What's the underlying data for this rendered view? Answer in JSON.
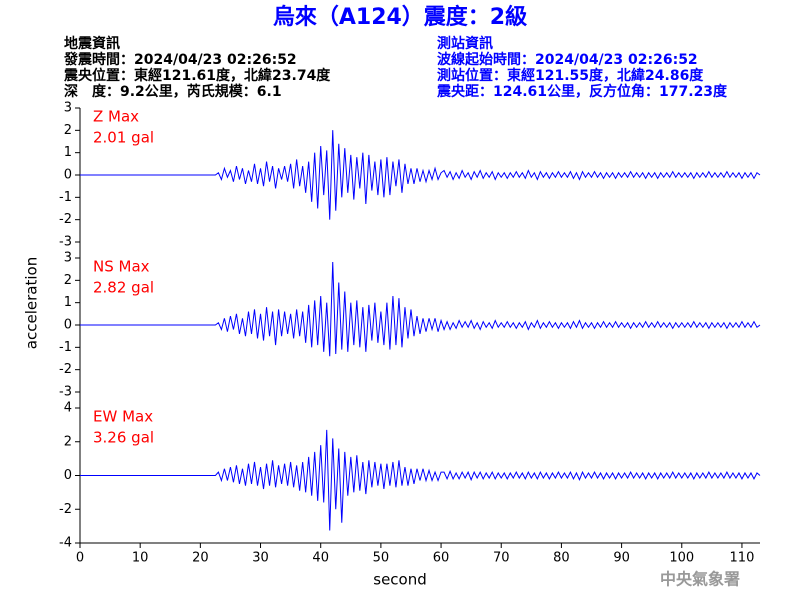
{
  "title": "烏來（A124）震度：2級",
  "event_info": {
    "heading": "地震資訊",
    "lines": [
      "發震時間：2024/04/23 02:26:52",
      "震央位置：東經121.61度，北緯23.74度",
      "深　度：9.2公里，芮氏規模：6.1"
    ]
  },
  "station_info": {
    "heading": "測站資訊",
    "lines": [
      "波線起始時間：2024/04/23 02:26:52",
      "測站位置：東經121.55度，北緯24.86度",
      "震央距：124.61公里，反方位角：177.23度"
    ]
  },
  "footer": "中央氣象署",
  "chart_data": {
    "type": "line",
    "xlabel": "second",
    "ylabel": "acceleration",
    "xlim": [
      0,
      113
    ],
    "xticks": [
      0,
      10,
      20,
      30,
      40,
      50,
      60,
      70,
      80,
      90,
      100,
      110
    ],
    "x": [
      0,
      22.5,
      23,
      23.5,
      24,
      24.5,
      25,
      25.5,
      26,
      26.5,
      27,
      27.5,
      28,
      28.5,
      29,
      29.5,
      30,
      30.5,
      31,
      31.5,
      32,
      32.5,
      33,
      33.5,
      34,
      34.5,
      35,
      35.5,
      36,
      36.5,
      37,
      37.5,
      38,
      38.5,
      39,
      39.5,
      40,
      40.5,
      41,
      41.5,
      42,
      42.5,
      43,
      43.5,
      44,
      44.5,
      45,
      45.5,
      46,
      46.5,
      47,
      47.5,
      48,
      48.5,
      49,
      49.5,
      50,
      50.5,
      51,
      51.5,
      52,
      52.5,
      53,
      53.5,
      54,
      54.5,
      55,
      55.5,
      56,
      56.5,
      57,
      57.5,
      58,
      58.5,
      59,
      59.5,
      60,
      60.5,
      61,
      61.5,
      62,
      62.5,
      63,
      63.5,
      64,
      64.5,
      65,
      65.5,
      66,
      66.5,
      67,
      67.5,
      68,
      68.5,
      69,
      69.5,
      70,
      70.5,
      71,
      71.5,
      72,
      72.5,
      73,
      73.5,
      74,
      74.5,
      75,
      75.5,
      76,
      76.5,
      77,
      77.5,
      78,
      78.5,
      79,
      79.5,
      80,
      80.5,
      81,
      81.5,
      82,
      82.5,
      83,
      83.5,
      84,
      84.5,
      85,
      85.5,
      86,
      86.5,
      87,
      87.5,
      88,
      88.5,
      89,
      89.5,
      90,
      90.5,
      91,
      91.5,
      92,
      92.5,
      93,
      93.5,
      94,
      94.5,
      95,
      95.5,
      96,
      96.5,
      97,
      97.5,
      98,
      98.5,
      99,
      99.5,
      100,
      100.5,
      101,
      101.5,
      102,
      102.5,
      103,
      103.5,
      104,
      104.5,
      105,
      105.5,
      106,
      106.5,
      107,
      107.5,
      108,
      108.5,
      109,
      109.5,
      110,
      110.5,
      111,
      111.5,
      112,
      112.5,
      113
    ],
    "series": [
      {
        "name": "Z Max",
        "max_text": "2.01 gal",
        "color": "#0000ff",
        "label_color": "#ff0000",
        "ylim": [
          -3,
          3
        ],
        "yticks": [
          -3,
          -2,
          -1,
          0,
          1,
          2,
          3
        ],
        "values": [
          0,
          0,
          0.1,
          -0.2,
          0.3,
          -0.1,
          0.2,
          -0.3,
          0.4,
          -0.2,
          0.3,
          -0.4,
          0.2,
          -0.3,
          0.5,
          -0.4,
          0.3,
          -0.5,
          0.6,
          -0.3,
          0.4,
          -0.6,
          0.3,
          -0.2,
          0.4,
          -0.3,
          0.5,
          -0.6,
          0.7,
          -0.5,
          0.4,
          -0.8,
          0.6,
          -1.2,
          1.0,
          -1.5,
          1.3,
          -0.9,
          1.1,
          -2.0,
          2.01,
          -1.6,
          1.4,
          -1.0,
          1.2,
          -0.8,
          0.9,
          -1.1,
          0.8,
          -0.6,
          1.0,
          -1.3,
          0.9,
          -0.7,
          0.6,
          -0.9,
          0.7,
          -1.0,
          0.8,
          -0.9,
          0.6,
          -0.5,
          0.7,
          -0.8,
          0.5,
          -0.4,
          0.3,
          -0.4,
          0.3,
          -0.3,
          0.2,
          -0.3,
          0.2,
          -0.2,
          0.3,
          -0.2,
          0.1,
          0.2,
          -0.1,
          0.15,
          -0.2,
          0.1,
          -0.15,
          0.2,
          -0.1,
          0.1,
          -0.2,
          0.15,
          -0.1,
          0.2,
          -0.15,
          0.1,
          -0.1,
          0.15,
          -0.2,
          0.1,
          -0.1,
          0.1,
          -0.15,
          0.1,
          -0.1,
          0.15,
          -0.1,
          0.1,
          -0.15,
          0.2,
          -0.1,
          0.1,
          -0.2,
          0.15,
          -0.1,
          0.1,
          -0.15,
          0.1,
          -0.1,
          0.15,
          -0.1,
          0.1,
          -0.1,
          0.15,
          -0.15,
          0.1,
          -0.2,
          0.15,
          -0.1,
          0.1,
          -0.1,
          0.15,
          -0.1,
          0.1,
          -0.15,
          0.1,
          -0.1,
          0.1,
          -0.15,
          0.1,
          -0.1,
          0.1,
          -0.1,
          0.15,
          -0.1,
          0.1,
          -0.1,
          0.1,
          -0.15,
          0.1,
          -0.1,
          0.1,
          -0.15,
          0.1,
          -0.1,
          0.1,
          -0.1,
          0.15,
          -0.1,
          0.1,
          -0.1,
          0.1,
          -0.1,
          0.1,
          -0.15,
          0.1,
          -0.1,
          0.1,
          -0.1,
          0.15,
          -0.1,
          0.1,
          -0.1,
          0.1,
          -0.1,
          0.15,
          -0.1,
          0.1,
          -0.1,
          0.1,
          -0.15,
          0.1,
          -0.1,
          0.1,
          -0.15,
          0.1,
          0
        ]
      },
      {
        "name": "NS Max",
        "max_text": "2.82 gal",
        "color": "#0000ff",
        "label_color": "#ff0000",
        "ylim": [
          -3,
          3
        ],
        "yticks": [
          -3,
          -2,
          -1,
          0,
          1,
          2,
          3
        ],
        "values": [
          0,
          0,
          0.1,
          -0.2,
          0.3,
          -0.3,
          0.4,
          -0.2,
          0.5,
          -0.4,
          0.3,
          -0.5,
          0.6,
          -0.4,
          0.7,
          -0.6,
          0.5,
          -0.7,
          0.8,
          -0.5,
          0.6,
          -0.9,
          0.7,
          -0.5,
          0.6,
          -0.4,
          0.5,
          -0.6,
          0.7,
          -0.5,
          0.6,
          -0.8,
          0.9,
          -1.0,
          1.1,
          -0.9,
          1.3,
          -1.2,
          1.0,
          -1.4,
          2.82,
          -1.3,
          1.9,
          -1.1,
          1.5,
          -1.2,
          1.0,
          -0.9,
          1.1,
          -1.0,
          0.8,
          -1.2,
          0.9,
          -0.7,
          1.0,
          -0.8,
          0.6,
          -0.9,
          1.0,
          -1.1,
          1.3,
          -0.9,
          1.2,
          -1.0,
          0.8,
          -0.6,
          0.7,
          -0.5,
          0.4,
          -0.4,
          0.3,
          -0.3,
          0.3,
          -0.2,
          0.3,
          -0.3,
          0.2,
          -0.2,
          0.15,
          -0.2,
          0.1,
          -0.15,
          0.2,
          -0.1,
          0.15,
          -0.1,
          0.2,
          -0.15,
          0.1,
          -0.2,
          0.15,
          -0.1,
          0.1,
          -0.15,
          0.2,
          -0.1,
          0.1,
          -0.1,
          0.15,
          -0.1,
          0.1,
          -0.15,
          0.1,
          -0.1,
          0.15,
          -0.2,
          0.1,
          -0.1,
          0.2,
          -0.15,
          0.1,
          -0.1,
          0.15,
          -0.1,
          0.1,
          -0.15,
          0.1,
          -0.1,
          0.1,
          -0.15,
          0.15,
          -0.1,
          0.2,
          -0.15,
          0.1,
          -0.1,
          0.1,
          -0.15,
          0.1,
          -0.1,
          0.15,
          -0.1,
          0.1,
          -0.1,
          0.15,
          -0.1,
          0.1,
          -0.1,
          0.1,
          -0.15,
          0.1,
          -0.1,
          0.1,
          -0.1,
          0.15,
          -0.1,
          0.1,
          -0.1,
          0.15,
          -0.1,
          0.1,
          -0.1,
          0.1,
          -0.15,
          0.1,
          -0.1,
          0.1,
          -0.1,
          0.1,
          -0.1,
          0.15,
          -0.1,
          0.1,
          -0.1,
          0.1,
          -0.15,
          0.1,
          -0.1,
          0.1,
          -0.1,
          0.1,
          -0.15,
          0.1,
          -0.1,
          0.1,
          -0.1,
          0.15,
          -0.1,
          0.1,
          -0.1,
          0.15,
          -0.1,
          0
        ]
      },
      {
        "name": "EW Max",
        "max_text": "3.26 gal",
        "color": "#0000ff",
        "label_color": "#ff0000",
        "ylim": [
          -4,
          4
        ],
        "yticks": [
          -4,
          -2,
          0,
          2,
          4
        ],
        "values": [
          0,
          0,
          0.2,
          -0.3,
          0.4,
          -0.3,
          0.5,
          -0.4,
          0.6,
          -0.5,
          0.4,
          -0.6,
          0.7,
          -0.5,
          0.8,
          -0.6,
          0.5,
          -0.8,
          0.7,
          -0.6,
          0.9,
          -0.7,
          0.6,
          -0.5,
          0.7,
          -0.6,
          0.8,
          -0.7,
          0.6,
          -0.9,
          0.8,
          -1.0,
          1.1,
          -1.2,
          1.4,
          -1.5,
          1.8,
          -1.6,
          2.7,
          -3.26,
          2.2,
          -2.0,
          1.6,
          -2.8,
          1.4,
          -1.2,
          1.1,
          -1.0,
          1.2,
          -0.9,
          0.8,
          -1.1,
          0.9,
          -0.7,
          0.8,
          -0.6,
          0.7,
          -0.8,
          0.7,
          -0.6,
          0.8,
          -0.7,
          0.9,
          -0.6,
          0.5,
          -0.6,
          0.4,
          -0.5,
          0.4,
          -0.3,
          0.4,
          -0.3,
          0.3,
          -0.3,
          0.2,
          -0.3,
          0.2,
          0.2,
          -0.2,
          0.25,
          -0.2,
          0.15,
          -0.2,
          0.2,
          -0.15,
          0.2,
          -0.25,
          0.2,
          -0.15,
          0.2,
          -0.2,
          0.15,
          -0.15,
          0.2,
          -0.2,
          0.15,
          -0.15,
          0.15,
          -0.2,
          0.15,
          -0.15,
          0.2,
          -0.15,
          0.15,
          -0.2,
          0.2,
          -0.15,
          0.15,
          -0.2,
          0.2,
          -0.15,
          0.15,
          -0.2,
          0.15,
          -0.15,
          0.2,
          -0.15,
          0.15,
          -0.15,
          0.2,
          -0.2,
          0.15,
          -0.25,
          0.2,
          -0.15,
          0.15,
          -0.15,
          0.2,
          -0.15,
          0.15,
          -0.2,
          0.15,
          -0.15,
          0.15,
          -0.2,
          0.15,
          -0.15,
          0.15,
          -0.15,
          0.2,
          -0.15,
          0.15,
          -0.15,
          0.15,
          -0.2,
          0.15,
          -0.15,
          0.15,
          -0.2,
          0.15,
          -0.15,
          0.15,
          -0.15,
          0.2,
          -0.15,
          0.15,
          -0.15,
          0.15,
          -0.15,
          0.15,
          -0.2,
          0.15,
          -0.15,
          0.15,
          -0.15,
          0.2,
          -0.15,
          0.15,
          -0.15,
          0.15,
          -0.15,
          0.2,
          -0.15,
          0.15,
          -0.15,
          0.15,
          -0.2,
          0.15,
          -0.15,
          0.15,
          -0.2,
          0.15,
          0
        ]
      }
    ]
  }
}
